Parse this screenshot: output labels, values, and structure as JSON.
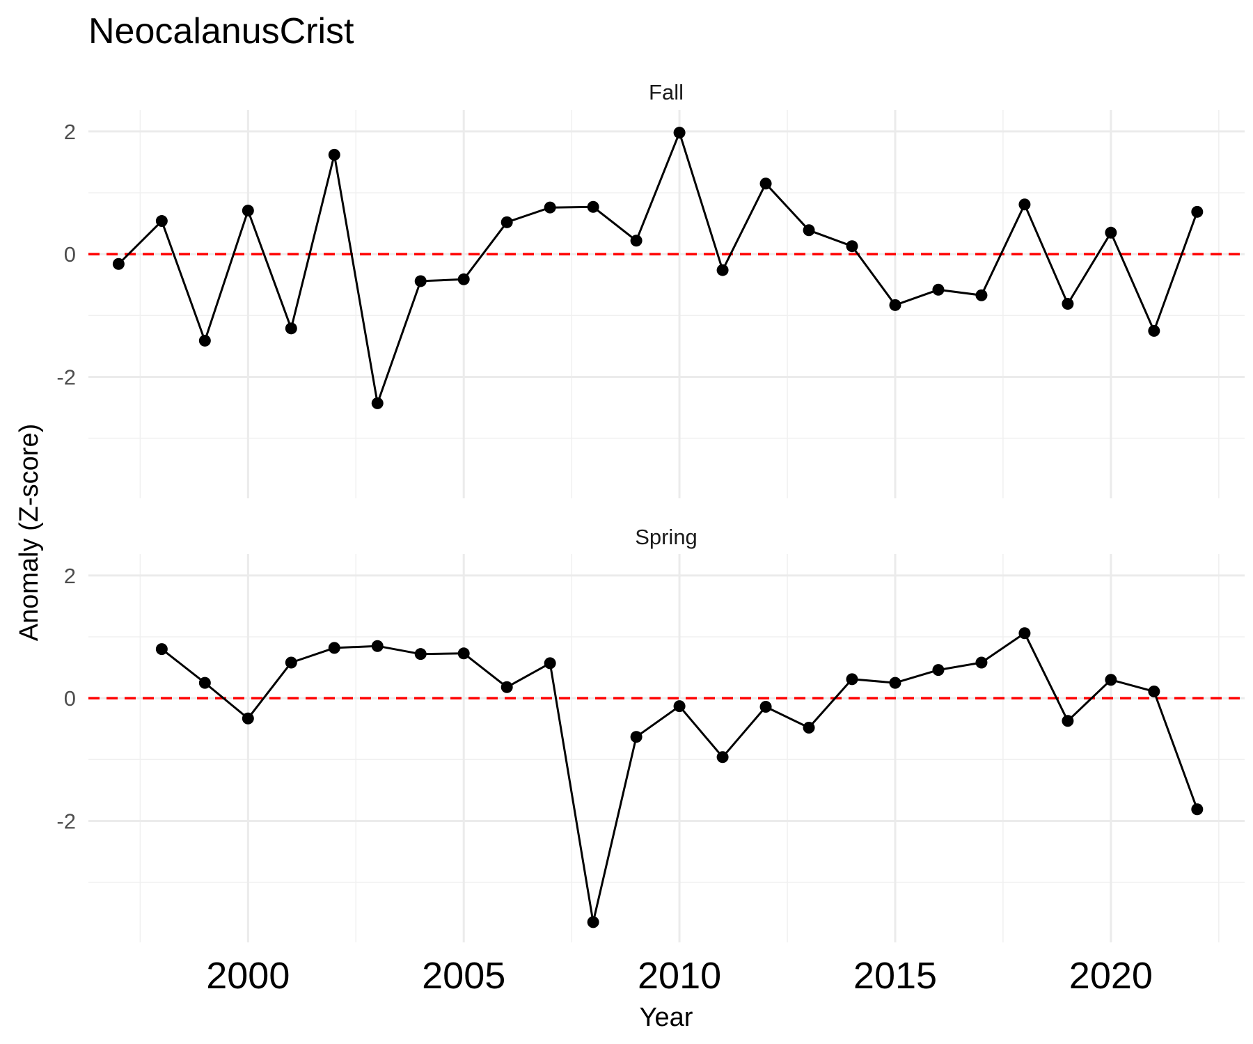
{
  "chart_data": {
    "type": "line",
    "title": "NeocalanusCrist",
    "xlabel": "Year",
    "ylabel": "Anomaly (Z-score)",
    "xlim": [
      1996.3,
      2023.1
    ],
    "x_ticks": [
      2000,
      2005,
      2010,
      2015,
      2020
    ],
    "y_ticks": [
      -2,
      0,
      2
    ],
    "y_ticks_labels": [
      "-2",
      "0",
      "2"
    ],
    "x_ticks_labels": [
      "2000",
      "2005",
      "2010",
      "2015",
      "2020"
    ],
    "ylim": [
      -3.98,
      2.35
    ],
    "reference_line": {
      "y": 0,
      "color": "#ff0000",
      "style": "dashed"
    },
    "line_color": "#000000",
    "grid": true,
    "panels": [
      {
        "label": "Fall",
        "x": [
          1997,
          1998,
          1999,
          2000,
          2001,
          2002,
          2003,
          2004,
          2005,
          2006,
          2007,
          2008,
          2009,
          2010,
          2011,
          2012,
          2013,
          2014,
          2015,
          2016,
          2017,
          2018,
          2019,
          2020,
          2021,
          2022
        ],
        "y": [
          -0.16,
          0.54,
          -1.41,
          0.71,
          -1.21,
          1.62,
          -2.43,
          -0.44,
          -0.41,
          0.52,
          0.76,
          0.77,
          0.22,
          1.98,
          -0.26,
          1.15,
          0.39,
          0.13,
          -0.83,
          -0.58,
          -0.67,
          0.81,
          -0.81,
          0.35,
          -1.25,
          0.69
        ]
      },
      {
        "label": "Spring",
        "x": [
          1998,
          1999,
          2000,
          2001,
          2002,
          2003,
          2004,
          2005,
          2006,
          2007,
          2008,
          2009,
          2010,
          2011,
          2012,
          2013,
          2014,
          2015,
          2016,
          2017,
          2018,
          2019,
          2020,
          2021,
          2022
        ],
        "y": [
          0.8,
          0.25,
          -0.33,
          0.58,
          0.82,
          0.85,
          0.72,
          0.73,
          0.18,
          0.57,
          -3.65,
          -0.63,
          -0.13,
          -0.96,
          -0.14,
          -0.48,
          0.31,
          0.25,
          0.46,
          0.58,
          1.06,
          -0.37,
          0.3,
          0.11,
          -1.81
        ]
      }
    ]
  }
}
